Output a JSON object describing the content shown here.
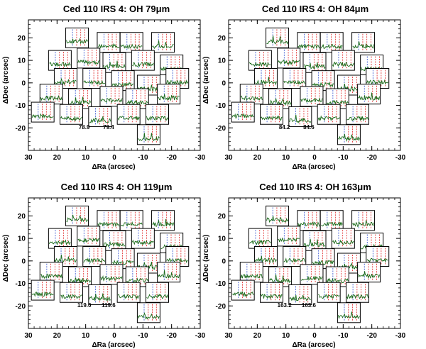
{
  "chart_data": [
    {
      "type": "scatter",
      "title": "Ced 110 IRS 4: OH 79μm",
      "xlabel": "ΔRa (arcsec)",
      "ylabel": "ΔDec (arcsec)",
      "xlim": [
        30,
        -30
      ],
      "ylim": [
        -30,
        28
      ],
      "xticks": [
        "30",
        "20",
        "10",
        "0",
        "-10",
        "-20",
        "-30"
      ],
      "yticks": [
        "20",
        "10",
        "0",
        "-10",
        "-20"
      ],
      "annotations": [
        "78.9",
        "79.4"
      ],
      "spectra_offsets": [
        [
          13,
          20
        ],
        [
          2,
          18
        ],
        [
          -6,
          18
        ],
        [
          -17,
          18
        ],
        [
          19,
          10
        ],
        [
          9,
          11
        ],
        [
          0,
          9
        ],
        [
          -10,
          10
        ],
        [
          -20,
          8
        ],
        [
          17,
          2
        ],
        [
          7,
          2
        ],
        [
          -3,
          1
        ],
        [
          -12,
          -1
        ],
        [
          -22,
          2
        ],
        [
          22,
          -5
        ],
        [
          12,
          -7
        ],
        [
          1,
          -6
        ],
        [
          -8,
          -7
        ],
        [
          -19,
          -5
        ],
        [
          25,
          -13
        ],
        [
          15,
          -14
        ],
        [
          5,
          -15
        ],
        [
          -5,
          -14
        ],
        [
          -15,
          -14
        ],
        [
          -12,
          -23
        ]
      ]
    },
    {
      "type": "scatter",
      "title": "Ced 110 IRS 4: OH 84μm",
      "xlabel": "ΔRa (arcsec)",
      "ylabel": "ΔDec (arcsec)",
      "xlim": [
        30,
        -30
      ],
      "ylim": [
        -30,
        28
      ],
      "xticks": [
        "30",
        "20",
        "10",
        "0",
        "-10",
        "-20",
        "-30"
      ],
      "yticks": [
        "20",
        "10",
        "0",
        "-10",
        "-20"
      ],
      "annotations": [
        "84.2",
        "84.6"
      ],
      "spectra_offsets": [
        [
          13,
          20
        ],
        [
          2,
          18
        ],
        [
          -6,
          18
        ],
        [
          -17,
          18
        ],
        [
          19,
          10
        ],
        [
          9,
          11
        ],
        [
          0,
          9
        ],
        [
          -10,
          10
        ],
        [
          -20,
          8
        ],
        [
          17,
          2
        ],
        [
          7,
          2
        ],
        [
          -3,
          1
        ],
        [
          -12,
          -1
        ],
        [
          -22,
          2
        ],
        [
          22,
          -5
        ],
        [
          12,
          -7
        ],
        [
          1,
          -6
        ],
        [
          -8,
          -7
        ],
        [
          -19,
          -5
        ],
        [
          25,
          -13
        ],
        [
          15,
          -14
        ],
        [
          5,
          -15
        ],
        [
          -5,
          -14
        ],
        [
          -15,
          -14
        ],
        [
          -12,
          -23
        ]
      ]
    },
    {
      "type": "scatter",
      "title": "Ced 110 IRS 4: OH 119μm",
      "xlabel": "ΔRa (arcsec)",
      "ylabel": "ΔDec (arcsec)",
      "xlim": [
        30,
        -30
      ],
      "ylim": [
        -30,
        28
      ],
      "xticks": [
        "30",
        "20",
        "10",
        "0",
        "-10",
        "-20",
        "-30"
      ],
      "yticks": [
        "20",
        "10",
        "0",
        "-10",
        "-20"
      ],
      "annotations": [
        "119.0",
        "119.6"
      ],
      "spectra_offsets": [
        [
          13,
          20
        ],
        [
          2,
          18
        ],
        [
          -6,
          18
        ],
        [
          -17,
          18
        ],
        [
          19,
          10
        ],
        [
          9,
          11
        ],
        [
          0,
          9
        ],
        [
          -10,
          10
        ],
        [
          -20,
          8
        ],
        [
          17,
          2
        ],
        [
          7,
          2
        ],
        [
          -3,
          1
        ],
        [
          -12,
          -1
        ],
        [
          -22,
          2
        ],
        [
          22,
          -5
        ],
        [
          12,
          -7
        ],
        [
          1,
          -6
        ],
        [
          -8,
          -7
        ],
        [
          -19,
          -5
        ],
        [
          25,
          -13
        ],
        [
          15,
          -14
        ],
        [
          5,
          -15
        ],
        [
          -5,
          -14
        ],
        [
          -15,
          -14
        ],
        [
          -12,
          -23
        ]
      ]
    },
    {
      "type": "scatter",
      "title": "Ced 110 IRS 4: OH 163μm",
      "xlabel": "ΔRa (arcsec)",
      "ylabel": "ΔDec (arcsec)",
      "xlim": [
        30,
        -30
      ],
      "ylim": [
        -30,
        28
      ],
      "xticks": [
        "30",
        "20",
        "10",
        "0",
        "-10",
        "-20",
        "-30"
      ],
      "yticks": [
        "20",
        "10",
        "0",
        "-10",
        "-20"
      ],
      "annotations": [
        "163.2",
        "163.6"
      ],
      "spectra_offsets": [
        [
          13,
          20
        ],
        [
          2,
          18
        ],
        [
          -6,
          18
        ],
        [
          -17,
          18
        ],
        [
          19,
          10
        ],
        [
          9,
          11
        ],
        [
          0,
          9
        ],
        [
          -10,
          10
        ],
        [
          -20,
          8
        ],
        [
          17,
          2
        ],
        [
          7,
          2
        ],
        [
          -3,
          1
        ],
        [
          -12,
          -1
        ],
        [
          -22,
          2
        ],
        [
          22,
          -5
        ],
        [
          12,
          -7
        ],
        [
          1,
          -6
        ],
        [
          -8,
          -7
        ],
        [
          -19,
          -5
        ],
        [
          25,
          -13
        ],
        [
          15,
          -14
        ],
        [
          5,
          -15
        ],
        [
          -5,
          -14
        ],
        [
          -15,
          -14
        ],
        [
          -12,
          -23
        ]
      ]
    }
  ],
  "colors": {
    "spectrum": "#1a6b1a",
    "line_marker": "#e02020",
    "axis": "#000000"
  }
}
